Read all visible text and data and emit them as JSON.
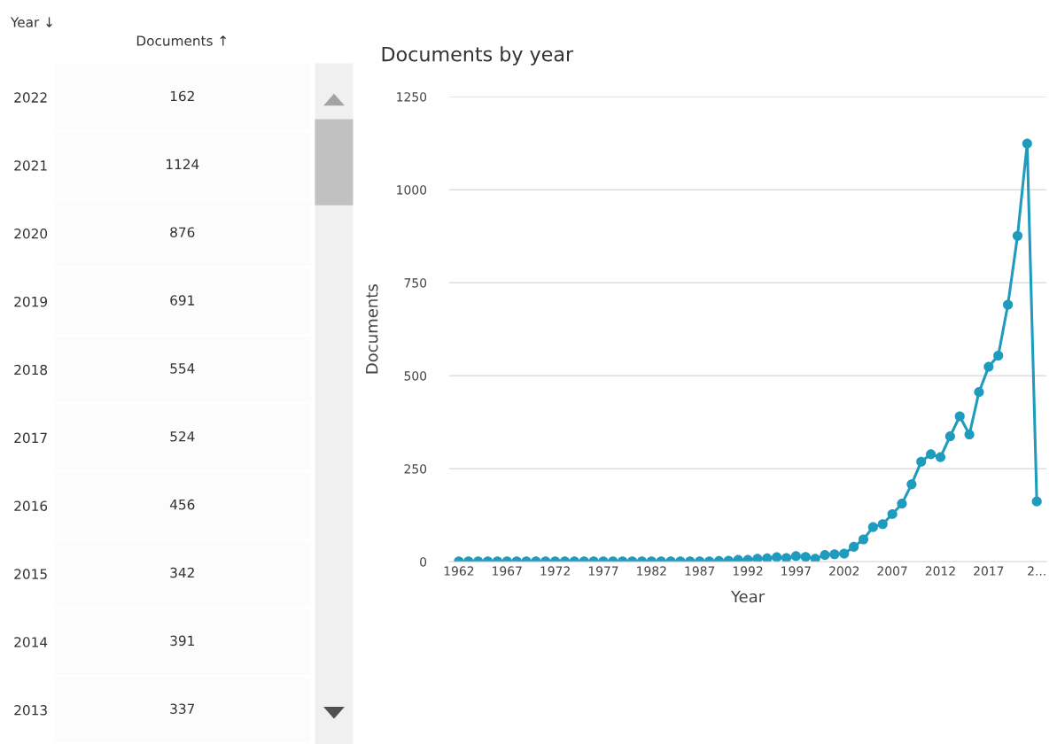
{
  "chart_data": [
    {
      "type": "heatmap",
      "ylabel": "Year ↓",
      "categories": [
        "Documents ↑"
      ],
      "y_categories": [
        "2022",
        "2021",
        "2020",
        "2019",
        "2018",
        "2017",
        "2016",
        "2015",
        "2014",
        "2013"
      ],
      "cells": [
        [
          162
        ],
        [
          1124
        ],
        [
          876
        ],
        [
          691
        ],
        [
          554
        ],
        [
          524
        ],
        [
          456
        ],
        [
          342
        ],
        [
          391
        ],
        [
          337
        ]
      ],
      "data_labels": true
    },
    {
      "type": "line",
      "title": "Documents by year",
      "xlabel": "Year",
      "ylabel": "Documents",
      "x": [
        1962,
        1963,
        1964,
        1965,
        1966,
        1967,
        1968,
        1969,
        1970,
        1971,
        1972,
        1973,
        1974,
        1975,
        1976,
        1977,
        1978,
        1979,
        1980,
        1981,
        1982,
        1983,
        1984,
        1985,
        1986,
        1987,
        1988,
        1989,
        1990,
        1991,
        1992,
        1993,
        1994,
        1995,
        1996,
        1997,
        1998,
        1999,
        2000,
        2001,
        2002,
        2003,
        2004,
        2005,
        2006,
        2007,
        2008,
        2009,
        2010,
        2011,
        2012,
        2013,
        2014,
        2015,
        2016,
        2017,
        2018,
        2019,
        2020,
        2021,
        2022
      ],
      "values": [
        1,
        1,
        1,
        1,
        1,
        1,
        1,
        1,
        1,
        1,
        1,
        1,
        1,
        1,
        1,
        1,
        1,
        1,
        1,
        1,
        1,
        1,
        1,
        1,
        1,
        1,
        1,
        2,
        3,
        5,
        5,
        8,
        9,
        12,
        10,
        15,
        13,
        8,
        18,
        20,
        22,
        40,
        60,
        93,
        101,
        128,
        156,
        208,
        269,
        289,
        281,
        337,
        391,
        342,
        456,
        524,
        554,
        691,
        876,
        1124,
        162
      ],
      "color": "#1f9bbd",
      "marker": "circle",
      "line_style": "solid",
      "xlim": [
        1961,
        2023
      ],
      "ylim": [
        0,
        1250
      ],
      "xticks": [
        1962,
        1967,
        1972,
        1977,
        1982,
        1987,
        1992,
        1997,
        2002,
        2007,
        2012,
        2017,
        {
          "value": 2022,
          "label": "2..."
        }
      ],
      "yticks": [
        0,
        250,
        500,
        750,
        1000,
        1250
      ],
      "grid": "y"
    }
  ]
}
